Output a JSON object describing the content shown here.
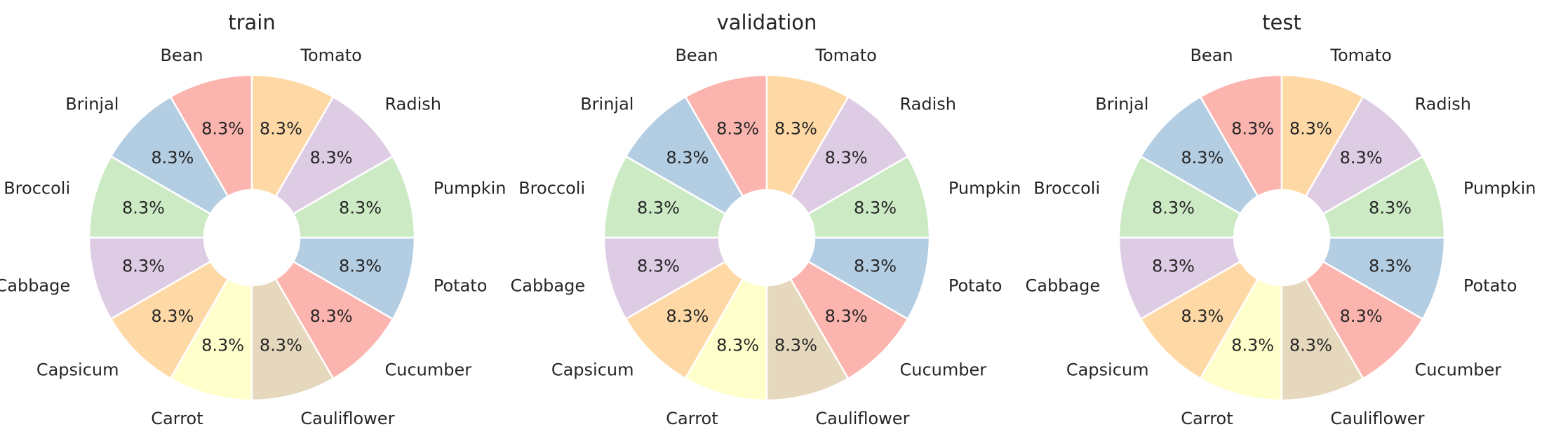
{
  "chart_data": [
    {
      "type": "pie",
      "title": "train",
      "donut": true,
      "start_angle_deg": 90,
      "direction": "counterclockwise",
      "categories": [
        "Bean",
        "Brinjal",
        "Broccoli",
        "Cabbage",
        "Capsicum",
        "Carrot",
        "Cauliflower",
        "Cucumber",
        "Potato",
        "Pumpkin",
        "Radish",
        "Tomato"
      ],
      "values": [
        8.3,
        8.3,
        8.3,
        8.3,
        8.3,
        8.3,
        8.3,
        8.3,
        8.3,
        8.3,
        8.3,
        8.3
      ],
      "value_labels": [
        "8.3%",
        "8.3%",
        "8.3%",
        "8.3%",
        "8.3%",
        "8.3%",
        "8.3%",
        "8.3%",
        "8.3%",
        "8.3%",
        "8.3%",
        "8.3%"
      ],
      "colors": [
        "#fbb4ae",
        "#b3cde3",
        "#ccebc5",
        "#decbe4",
        "#fed9a6",
        "#ffffcc",
        "#e5d8bd",
        "#fbb4ae",
        "#b3cde3",
        "#ccebc5",
        "#decbe4",
        "#fed9a6"
      ]
    },
    {
      "type": "pie",
      "title": "validation",
      "donut": true,
      "start_angle_deg": 90,
      "direction": "counterclockwise",
      "categories": [
        "Bean",
        "Brinjal",
        "Broccoli",
        "Cabbage",
        "Capsicum",
        "Carrot",
        "Cauliflower",
        "Cucumber",
        "Potato",
        "Pumpkin",
        "Radish",
        "Tomato"
      ],
      "values": [
        8.3,
        8.3,
        8.3,
        8.3,
        8.3,
        8.3,
        8.3,
        8.3,
        8.3,
        8.3,
        8.3,
        8.3
      ],
      "value_labels": [
        "8.3%",
        "8.3%",
        "8.3%",
        "8.3%",
        "8.3%",
        "8.3%",
        "8.3%",
        "8.3%",
        "8.3%",
        "8.3%",
        "8.3%",
        "8.3%"
      ],
      "colors": [
        "#fbb4ae",
        "#b3cde3",
        "#ccebc5",
        "#decbe4",
        "#fed9a6",
        "#ffffcc",
        "#e5d8bd",
        "#fbb4ae",
        "#b3cde3",
        "#ccebc5",
        "#decbe4",
        "#fed9a6"
      ]
    },
    {
      "type": "pie",
      "title": "test",
      "donut": true,
      "start_angle_deg": 90,
      "direction": "counterclockwise",
      "categories": [
        "Bean",
        "Brinjal",
        "Broccoli",
        "Cabbage",
        "Capsicum",
        "Carrot",
        "Cauliflower",
        "Cucumber",
        "Potato",
        "Pumpkin",
        "Radish",
        "Tomato"
      ],
      "values": [
        8.3,
        8.3,
        8.3,
        8.3,
        8.3,
        8.3,
        8.3,
        8.3,
        8.3,
        8.3,
        8.3,
        8.3
      ],
      "value_labels": [
        "8.3%",
        "8.3%",
        "8.3%",
        "8.3%",
        "8.3%",
        "8.3%",
        "8.3%",
        "8.3%",
        "8.3%",
        "8.3%",
        "8.3%",
        "8.3%"
      ],
      "colors": [
        "#fbb4ae",
        "#b3cde3",
        "#ccebc5",
        "#decbe4",
        "#fed9a6",
        "#ffffcc",
        "#e5d8bd",
        "#fbb4ae",
        "#b3cde3",
        "#ccebc5",
        "#decbe4",
        "#fed9a6"
      ]
    }
  ]
}
